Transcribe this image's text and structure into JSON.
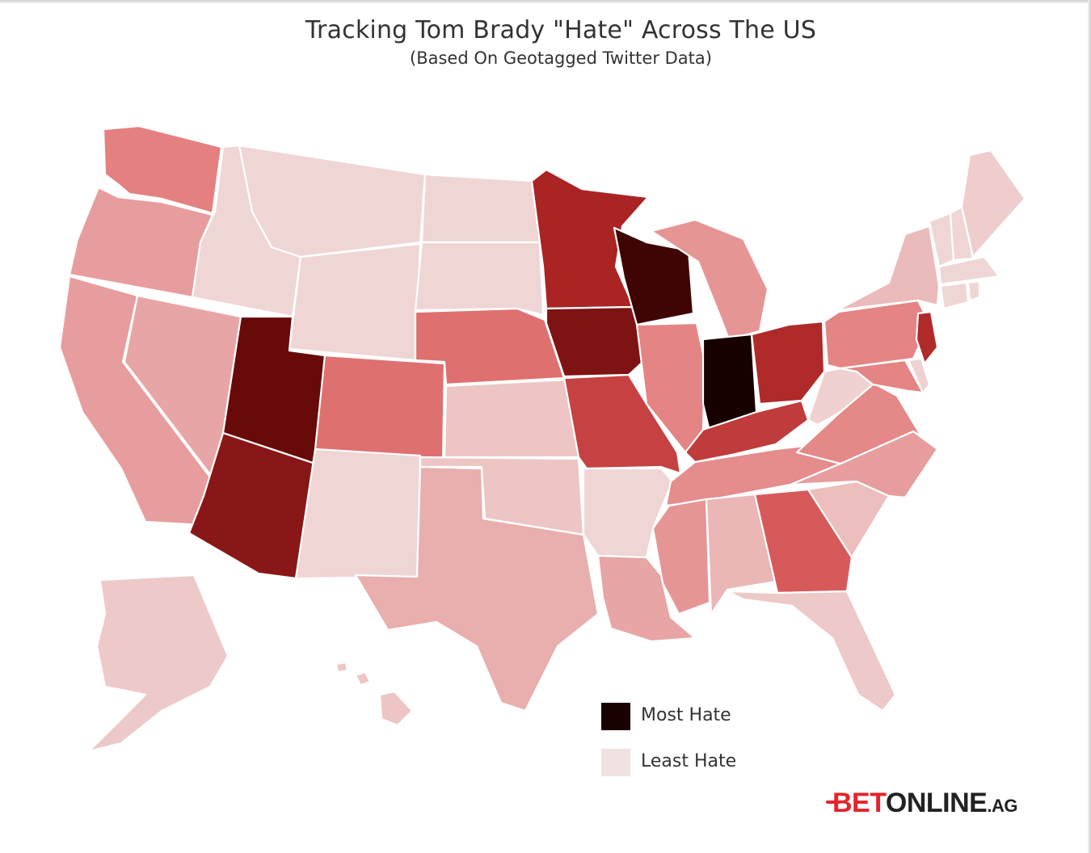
{
  "title": "Tracking Tom Brady \"Hate\" Across The US",
  "subtitle": "(Based On Geotagged Twitter Data)",
  "legend": {
    "most": {
      "label": "Most Hate",
      "color": "#1a0000"
    },
    "least": {
      "label": "Least Hate",
      "color": "#f2e1e1"
    }
  },
  "brand": {
    "part1": "BET",
    "part2": "ONLINE",
    "part3": ".AG"
  },
  "chart_data": {
    "type": "choropleth",
    "scale": "most hate = darkest, least hate = lightest",
    "levels": {
      "IN": 1.0,
      "WI": 0.96,
      "UT": 0.92,
      "IA": 0.88,
      "AZ": 0.86,
      "MN": 0.8,
      "OH": 0.78,
      "NJ": 0.78,
      "KY": 0.72,
      "MO": 0.7,
      "GA": 0.62,
      "CO": 0.55,
      "NE": 0.55,
      "WA": 0.5,
      "IL": 0.48,
      "PA": 0.48,
      "MD": 0.48,
      "VA": 0.46,
      "TN": 0.44,
      "MI": 0.4,
      "MS": 0.4,
      "CA": 0.36,
      "OR": 0.36,
      "NC": 0.36,
      "NV": 0.32,
      "LA": 0.32,
      "TX": 0.28,
      "AL": 0.24,
      "NY": 0.22,
      "SC": 0.2,
      "KS": 0.16,
      "OK": 0.16,
      "HI": 0.16,
      "AK": 0.14,
      "FL": 0.14,
      "ME": 0.12,
      "WV": 0.1,
      "DE": 0.1,
      "MT": 0.08,
      "ID": 0.08,
      "WY": 0.08,
      "ND": 0.08,
      "SD": 0.08,
      "NM": 0.08,
      "AR": 0.08,
      "VT": 0.08,
      "NH": 0.08,
      "MA": 0.08,
      "CT": 0.08,
      "RI": 0.08
    }
  }
}
